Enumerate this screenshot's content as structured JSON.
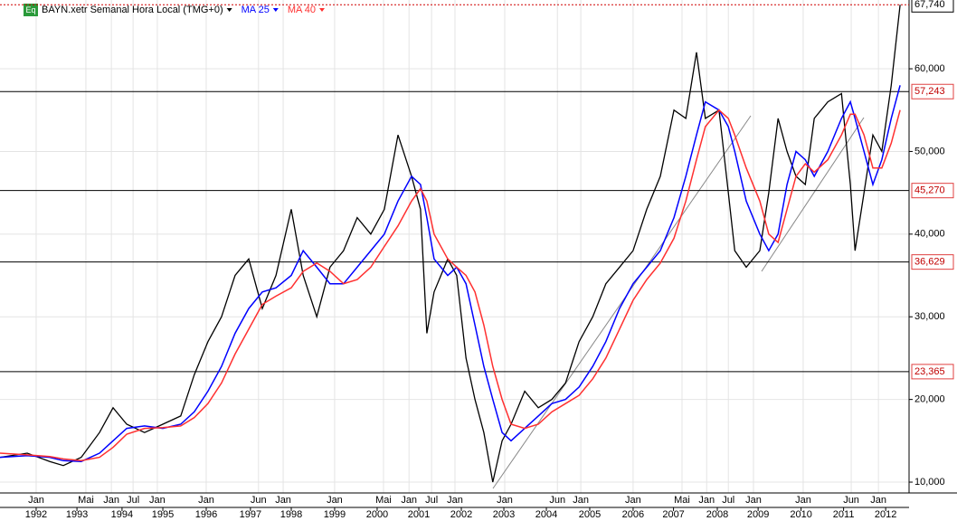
{
  "chart_data": {
    "type": "line",
    "legend_icon": "Eq",
    "x": [
      1991.15,
      1991.79,
      1992.32,
      1992.64,
      1993.06,
      1993.49,
      1993.81,
      1994.13,
      1994.55,
      1994.98,
      1995.4,
      1995.72,
      1996.04,
      1996.36,
      1996.68,
      1997.0,
      1997.32,
      1997.64,
      1998.0,
      1998.28,
      1998.6,
      1998.91,
      1999.23,
      1999.55,
      1999.87,
      2000.19,
      2000.51,
      2000.83,
      2001.04,
      2001.19,
      2001.36,
      2001.68,
      2001.89,
      2002.11,
      2002.32,
      2002.53,
      2002.74,
      2002.96,
      2003.17,
      2003.49,
      2003.81,
      2004.13,
      2004.45,
      2004.77,
      2005.09,
      2005.4,
      2005.72,
      2006.04,
      2006.36,
      2006.68,
      2007.0,
      2007.28,
      2007.53,
      2007.74,
      2008.06,
      2008.28,
      2008.43,
      2008.7,
      2009.02,
      2009.23,
      2009.45,
      2009.66,
      2009.87,
      2010.09,
      2010.3,
      2010.62,
      2010.94,
      2011.15,
      2011.26,
      2011.47,
      2011.68,
      2011.89,
      2012.11,
      2012.32
    ],
    "series": [
      {
        "name": "BAYN.xetr Semanal Hora Local (TMG+0)",
        "color": "#000000",
        "values": [
          13000,
          13500,
          12500,
          12000,
          13000,
          16000,
          19000,
          17000,
          16000,
          17000,
          18000,
          23000,
          27000,
          30000,
          35000,
          37000,
          31000,
          35000,
          43000,
          35000,
          30000,
          36000,
          38000,
          42000,
          40000,
          43000,
          52000,
          47000,
          43000,
          28000,
          33000,
          37000,
          35000,
          25000,
          20000,
          16000,
          10000,
          15000,
          17000,
          21000,
          19000,
          20000,
          22000,
          27000,
          30000,
          34000,
          36000,
          38000,
          43000,
          47000,
          55000,
          54000,
          62000,
          54000,
          55000,
          45000,
          38000,
          36000,
          38000,
          45000,
          54000,
          50000,
          47000,
          46000,
          54000,
          56000,
          57000,
          46000,
          38000,
          45000,
          52000,
          50000,
          58000,
          67740
        ]
      },
      {
        "name": "MA 25",
        "color": "#0000ff",
        "values": [
          13000,
          13200,
          13000,
          12600,
          12500,
          13500,
          15000,
          16500,
          16800,
          16500,
          17000,
          18500,
          21000,
          24000,
          28000,
          31000,
          33000,
          33500,
          35000,
          38000,
          36000,
          34000,
          34000,
          36000,
          38000,
          40000,
          44000,
          47000,
          46000,
          42000,
          37000,
          35000,
          36000,
          34000,
          29000,
          24000,
          20000,
          16000,
          15000,
          16500,
          18000,
          19500,
          20000,
          21500,
          24000,
          27000,
          31000,
          34000,
          36000,
          38000,
          42000,
          47000,
          52000,
          56000,
          55000,
          53000,
          50000,
          44000,
          40000,
          38000,
          40000,
          46000,
          50000,
          49000,
          47000,
          50000,
          54000,
          56000,
          54000,
          50000,
          46000,
          49000,
          54000,
          58000
        ]
      },
      {
        "name": "MA 40",
        "color": "#ff3030",
        "values": [
          13500,
          13300,
          13100,
          12800,
          12600,
          13000,
          14200,
          15800,
          16500,
          16600,
          16800,
          17800,
          19500,
          22000,
          25500,
          28500,
          31500,
          32500,
          33500,
          35500,
          36500,
          35500,
          34000,
          34500,
          36000,
          38500,
          41000,
          44000,
          45500,
          44000,
          40000,
          37000,
          36000,
          35000,
          33000,
          29000,
          24000,
          20000,
          17000,
          16500,
          17000,
          18500,
          19500,
          20500,
          22500,
          25000,
          28500,
          32000,
          34500,
          36500,
          39500,
          44000,
          49000,
          53000,
          55000,
          54000,
          52000,
          48000,
          44000,
          40000,
          39000,
          43000,
          47000,
          48500,
          47500,
          49000,
          52000,
          54500,
          54500,
          52000,
          48000,
          48000,
          51000,
          55000
        ]
      }
    ],
    "xlim": [
      1991.15,
      2012.53
    ],
    "xticks": [
      {
        "value": 1992.0,
        "label": "Jan"
      },
      {
        "value": 1993.17,
        "label": "Mai"
      },
      {
        "value": 1993.77,
        "label": "Jan"
      },
      {
        "value": 1994.28,
        "label": "Jul"
      },
      {
        "value": 1994.85,
        "label": "Jan"
      },
      {
        "value": 1996.0,
        "label": "Jan"
      },
      {
        "value": 1997.23,
        "label": "Jun"
      },
      {
        "value": 1997.81,
        "label": "Jan"
      },
      {
        "value": 1999.02,
        "label": "Jan"
      },
      {
        "value": 2000.17,
        "label": "Mai"
      },
      {
        "value": 2000.77,
        "label": "Jan"
      },
      {
        "value": 2001.3,
        "label": "Jul"
      },
      {
        "value": 2001.85,
        "label": "Jan"
      },
      {
        "value": 2003.02,
        "label": "Jan"
      },
      {
        "value": 2004.26,
        "label": "Jun"
      },
      {
        "value": 2004.81,
        "label": "Jan"
      },
      {
        "value": 2006.04,
        "label": "Jan"
      },
      {
        "value": 2007.19,
        "label": "Mai"
      },
      {
        "value": 2007.77,
        "label": "Jan"
      },
      {
        "value": 2008.28,
        "label": "Jul"
      },
      {
        "value": 2008.87,
        "label": "Jan"
      },
      {
        "value": 2010.04,
        "label": "Jan"
      },
      {
        "value": 2011.17,
        "label": "Jun"
      },
      {
        "value": 2011.81,
        "label": "Jan"
      }
    ],
    "year_ticks": [
      {
        "value": 1992.0,
        "label": "1992"
      },
      {
        "value": 1992.96,
        "label": "1993"
      },
      {
        "value": 1994.02,
        "label": "1994"
      },
      {
        "value": 1994.98,
        "label": "1995"
      },
      {
        "value": 1996.0,
        "label": "1996"
      },
      {
        "value": 1997.04,
        "label": "1997"
      },
      {
        "value": 1998.0,
        "label": "1998"
      },
      {
        "value": 1999.02,
        "label": "1999"
      },
      {
        "value": 2000.02,
        "label": "2000"
      },
      {
        "value": 2001.0,
        "label": "2001"
      },
      {
        "value": 2002.0,
        "label": "2002"
      },
      {
        "value": 2003.0,
        "label": "2003"
      },
      {
        "value": 2004.0,
        "label": "2004"
      },
      {
        "value": 2005.02,
        "label": "2005"
      },
      {
        "value": 2006.04,
        "label": "2006"
      },
      {
        "value": 2006.99,
        "label": "2007"
      },
      {
        "value": 2008.02,
        "label": "2008"
      },
      {
        "value": 2008.98,
        "label": "2009"
      },
      {
        "value": 2009.99,
        "label": "2010"
      },
      {
        "value": 2010.99,
        "label": "2011"
      },
      {
        "value": 2011.98,
        "label": "2012"
      }
    ],
    "ylim": [
      8690,
      68320
    ],
    "yticks": [
      {
        "value": 10000,
        "label": "10,000"
      },
      {
        "value": 20000,
        "label": "20,000"
      },
      {
        "value": 30000,
        "label": "30,000"
      },
      {
        "value": 40000,
        "label": "40,000"
      },
      {
        "value": 50000,
        "label": "50,000"
      },
      {
        "value": 60000,
        "label": "60,000"
      }
    ],
    "levels": [
      {
        "value": 57243,
        "label": "57,243"
      },
      {
        "value": 45270,
        "label": "45,270"
      },
      {
        "value": 36629,
        "label": "36,629"
      },
      {
        "value": 23365,
        "label": "23,365"
      }
    ],
    "last_price": {
      "value": 67740,
      "label": "67,740"
    },
    "grid": true
  }
}
